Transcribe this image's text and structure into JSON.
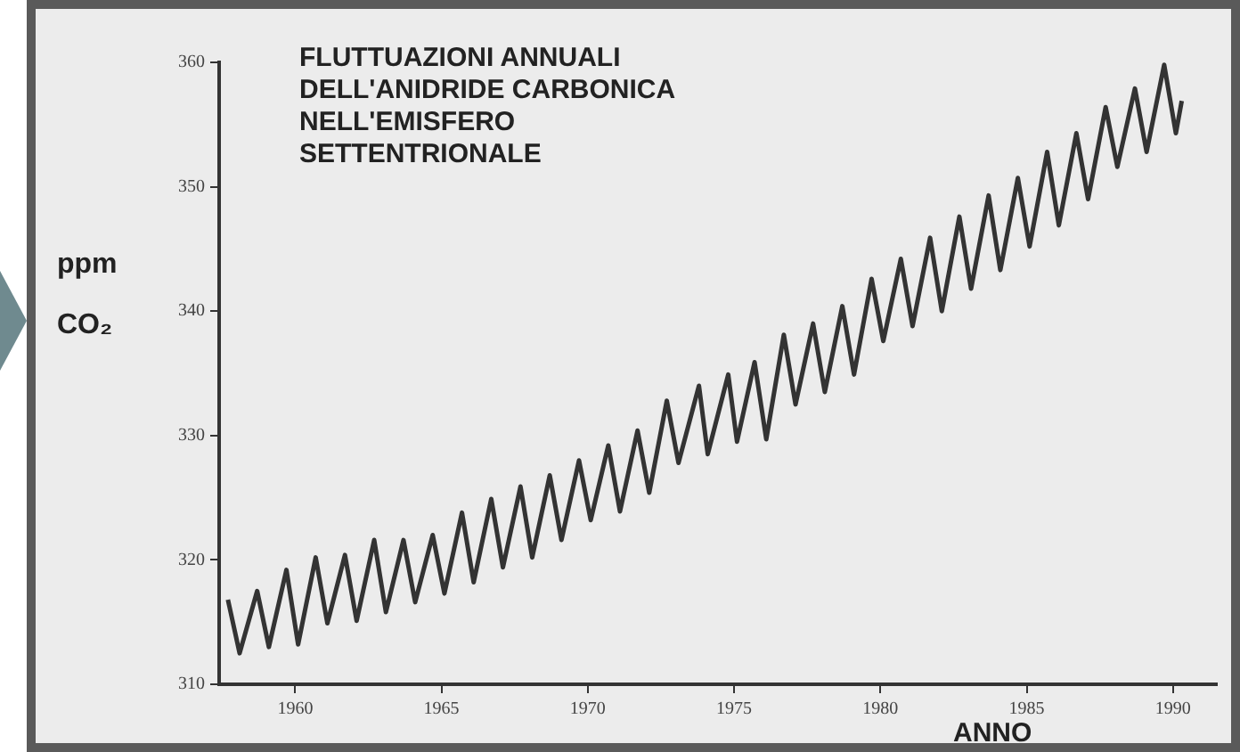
{
  "chart_data": {
    "type": "line",
    "title": "FLUTTUAZIONI ANNUALI\nDELL'ANIDRIDE CARBONICA\nNELL'EMISFERO\nSETTENTRIONALE",
    "xlabel": "ANNO",
    "ylabel": "ppm\nCO₂",
    "x": [
      1957.7,
      1958.1,
      1958.7,
      1959.1,
      1959.7,
      1960.1,
      1960.7,
      1961.1,
      1961.7,
      1962.1,
      1962.7,
      1963.1,
      1963.7,
      1964.1,
      1964.7,
      1965.1,
      1965.7,
      1966.1,
      1966.7,
      1967.1,
      1967.7,
      1968.1,
      1968.7,
      1969.1,
      1969.7,
      1970.1,
      1970.7,
      1971.1,
      1971.7,
      1972.1,
      1972.7,
      1973.1,
      1973.8,
      1974.1,
      1974.8,
      1975.1,
      1975.7,
      1976.1,
      1976.7,
      1977.1,
      1977.7,
      1978.1,
      1978.7,
      1979.1,
      1979.7,
      1980.1,
      1980.7,
      1981.1,
      1981.7,
      1982.1,
      1982.7,
      1983.1,
      1983.7,
      1984.1,
      1984.7,
      1985.1,
      1985.7,
      1986.1,
      1986.7,
      1987.1,
      1987.7,
      1988.1,
      1988.7,
      1989.1,
      1989.7,
      1990.1,
      1990.3
    ],
    "values": [
      316.8,
      312.5,
      317.5,
      313.0,
      319.2,
      313.2,
      320.2,
      314.9,
      320.4,
      315.1,
      321.6,
      315.8,
      321.6,
      316.6,
      322.0,
      317.3,
      323.8,
      318.2,
      324.9,
      319.4,
      325.9,
      320.2,
      326.8,
      321.6,
      328.0,
      323.2,
      329.2,
      323.9,
      330.4,
      325.4,
      332.8,
      327.8,
      334.0,
      328.5,
      334.9,
      329.5,
      335.9,
      329.7,
      338.1,
      332.5,
      339.0,
      333.5,
      340.4,
      334.9,
      342.6,
      337.6,
      344.2,
      338.8,
      345.9,
      340.0,
      347.6,
      341.8,
      349.3,
      343.3,
      350.7,
      345.2,
      352.8,
      346.9,
      354.3,
      349.0,
      356.4,
      351.6,
      357.9,
      352.8,
      359.8,
      354.3,
      356.9
    ],
    "color": "#333333",
    "xlim": [
      1957.4,
      1991.5
    ],
    "ylim": [
      310,
      360
    ],
    "xticks": [
      1960,
      1965,
      1970,
      1975,
      1980,
      1985,
      1990
    ],
    "yticks": [
      310,
      320,
      330,
      340,
      350,
      360
    ],
    "grid": false,
    "legend": false,
    "marker": "none",
    "line_style": "solid"
  }
}
